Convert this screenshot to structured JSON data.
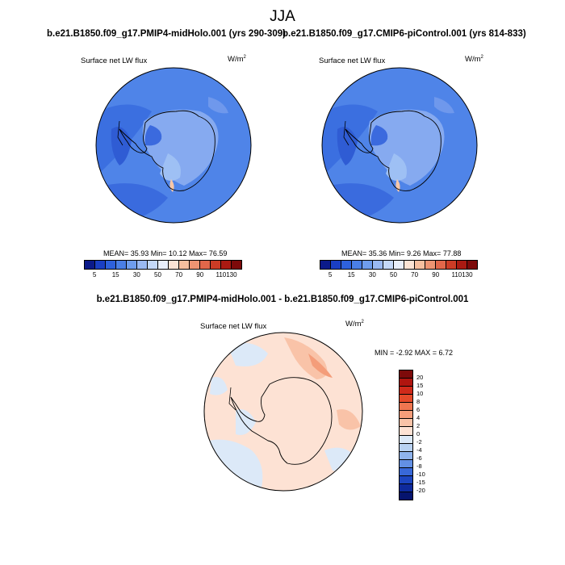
{
  "title": "JJA",
  "panel_left": {
    "case_title": "b.e21.B1850.f09_g17.PMIP4-midHolo.001 (yrs 290-309)",
    "variable": "Surface net LW flux",
    "units": "W/m",
    "units_sup": "2",
    "stats": "MEAN=  35.93  Min=  10.12  Max=  76.59"
  },
  "panel_right": {
    "case_title": "b.e21.B1850.f09_g17.CMIP6-piControl.001 (yrs 814-833)",
    "variable": "Surface net LW flux",
    "units": "W/m",
    "units_sup": "2",
    "stats": "MEAN=  35.36  Min=   9.26  Max=  77.88"
  },
  "colorbar_top": {
    "colors": [
      "#0b1a8a",
      "#1a3fc4",
      "#2e61dc",
      "#4a7fe6",
      "#6f9ded",
      "#9ab9f2",
      "#c4d8f8",
      "#e8eefa",
      "#fbe3d4",
      "#f6bf9f",
      "#ee9472",
      "#e2674a",
      "#cc3c26",
      "#aa1a12",
      "#7d0a0a"
    ],
    "ticks": [
      "5",
      "15",
      "30",
      "50",
      "70",
      "90",
      "110",
      "130"
    ]
  },
  "panel_diff": {
    "case_title": "b.e21.B1850.f09_g17.PMIP4-midHolo.001 - b.e21.B1850.f09_g17.CMIP6-piControl.001",
    "variable": "Surface net LW flux",
    "units": "W/m",
    "units_sup": "2",
    "stats": "MIN = -2.92 MAX =  6.72"
  },
  "colorbar_diff": {
    "colors": [
      "#7d0a0a",
      "#b0150f",
      "#d02a1a",
      "#e54a2a",
      "#ef7650",
      "#f49d7a",
      "#f9c3a8",
      "#fde2d4",
      "#dce9f8",
      "#b9d2f2",
      "#8fb3ec",
      "#6390e4",
      "#3868d8",
      "#1c45c0",
      "#0e2a9c",
      "#06146e"
    ],
    "ticks": [
      "20",
      "15",
      "10",
      "8",
      "6",
      "4",
      "2",
      "0",
      "-2",
      "-4",
      "-6",
      "-8",
      "-10",
      "-15",
      "-20"
    ]
  }
}
